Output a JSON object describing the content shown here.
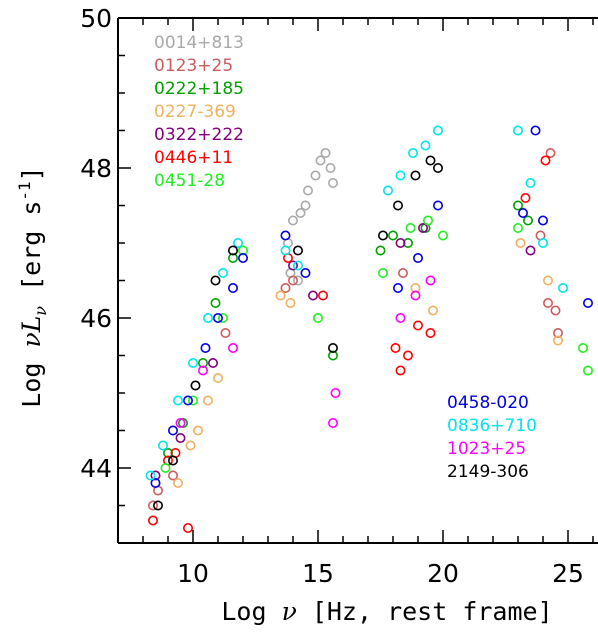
{
  "chart_data": {
    "type": "scatter",
    "title": "",
    "xlabel_prefix": "Log ",
    "xlabel_symbol": "ν",
    "xlabel_suffix": "  [Hz, rest frame]",
    "ylabel_prefix": "Log ",
    "ylabel_symbol": "νL",
    "ylabel_sub": "ν",
    "ylabel_bracket": "  [erg s",
    "ylabel_exp": "-1",
    "ylabel_end": "]",
    "xlim": [
      7.0,
      26.2
    ],
    "ylim": [
      43.0,
      50.0
    ],
    "x_ticks": [
      10,
      15,
      20,
      25
    ],
    "y_ticks": [
      44,
      46,
      48,
      50
    ],
    "grid": false,
    "legend_placement": "top-left and bottom-right",
    "series": [
      {
        "name": "0014+813",
        "color": "#a9a9a9",
        "points": [
          [
            13.8,
            47.0
          ],
          [
            14.0,
            47.3
          ],
          [
            14.3,
            47.4
          ],
          [
            14.6,
            47.7
          ],
          [
            14.9,
            47.9
          ],
          [
            15.1,
            48.1
          ],
          [
            15.3,
            48.2
          ],
          [
            15.5,
            48.0
          ],
          [
            15.6,
            47.8
          ],
          [
            14.5,
            47.5
          ],
          [
            13.9,
            46.6
          ],
          [
            14.2,
            46.5
          ]
        ]
      },
      {
        "name": "0123+25",
        "color": "#cd5c5c",
        "points": [
          [
            8.4,
            43.5
          ],
          [
            8.6,
            43.7
          ],
          [
            9.2,
            43.9
          ],
          [
            11.3,
            45.8
          ],
          [
            13.7,
            46.4
          ],
          [
            14.0,
            46.5
          ],
          [
            24.2,
            46.2
          ],
          [
            24.5,
            46.1
          ],
          [
            24.6,
            45.8
          ],
          [
            18.4,
            46.6
          ],
          [
            24.3,
            48.2
          ],
          [
            23.9,
            47.1
          ]
        ]
      },
      {
        "name": "0222+185",
        "color": "#00a000",
        "points": [
          [
            9.0,
            44.2
          ],
          [
            9.6,
            44.6
          ],
          [
            10.4,
            45.4
          ],
          [
            10.9,
            46.2
          ],
          [
            11.6,
            46.8
          ],
          [
            15.6,
            45.5
          ],
          [
            17.5,
            46.9
          ],
          [
            18.0,
            47.1
          ],
          [
            18.6,
            47.0
          ],
          [
            19.3,
            47.2
          ],
          [
            23.0,
            47.5
          ],
          [
            23.4,
            47.3
          ]
        ]
      },
      {
        "name": "0227-369",
        "color": "#f0b060",
        "points": [
          [
            9.4,
            43.8
          ],
          [
            9.9,
            44.3
          ],
          [
            10.2,
            44.5
          ],
          [
            10.6,
            44.9
          ],
          [
            11.0,
            45.2
          ],
          [
            13.5,
            46.3
          ],
          [
            13.9,
            46.2
          ],
          [
            18.9,
            46.4
          ],
          [
            19.6,
            46.1
          ],
          [
            23.1,
            47.0
          ],
          [
            24.2,
            46.5
          ],
          [
            24.6,
            45.7
          ]
        ]
      },
      {
        "name": "0322+222",
        "color": "#800080",
        "points": [
          [
            8.5,
            43.9
          ],
          [
            9.5,
            44.4
          ],
          [
            10.8,
            45.4
          ],
          [
            14.0,
            46.7
          ],
          [
            14.8,
            46.3
          ],
          [
            18.3,
            47.0
          ],
          [
            19.2,
            47.2
          ],
          [
            23.5,
            46.9
          ]
        ]
      },
      {
        "name": "0446+11",
        "color": "#ff0000",
        "points": [
          [
            8.4,
            43.3
          ],
          [
            9.0,
            44.1
          ],
          [
            9.3,
            44.2
          ],
          [
            9.8,
            43.2
          ],
          [
            13.8,
            46.8
          ],
          [
            15.2,
            46.3
          ],
          [
            18.1,
            45.6
          ],
          [
            18.3,
            45.3
          ],
          [
            18.6,
            45.5
          ],
          [
            19.0,
            45.9
          ],
          [
            19.5,
            45.8
          ],
          [
            23.3,
            47.6
          ],
          [
            24.1,
            48.1
          ]
        ]
      },
      {
        "name": "0451-28",
        "color": "#22ee22",
        "points": [
          [
            8.9,
            44.0
          ],
          [
            10.0,
            44.9
          ],
          [
            11.2,
            46.0
          ],
          [
            12.0,
            46.9
          ],
          [
            15.0,
            46.0
          ],
          [
            17.6,
            46.6
          ],
          [
            18.7,
            47.2
          ],
          [
            19.4,
            47.3
          ],
          [
            20.0,
            47.1
          ],
          [
            23.0,
            47.2
          ],
          [
            25.8,
            45.3
          ],
          [
            25.6,
            45.6
          ]
        ]
      },
      {
        "name": "0458-020",
        "color": "#0000e0",
        "points": [
          [
            8.5,
            43.8
          ],
          [
            9.2,
            44.5
          ],
          [
            9.8,
            44.9
          ],
          [
            10.5,
            45.6
          ],
          [
            11.0,
            46.0
          ],
          [
            11.6,
            46.4
          ],
          [
            12.0,
            46.8
          ],
          [
            13.7,
            47.1
          ],
          [
            14.5,
            46.6
          ],
          [
            18.2,
            46.4
          ],
          [
            19.0,
            46.8
          ],
          [
            19.8,
            47.5
          ],
          [
            23.2,
            47.4
          ],
          [
            23.7,
            48.5
          ],
          [
            24.0,
            47.3
          ],
          [
            25.8,
            46.2
          ]
        ]
      },
      {
        "name": "0836+710",
        "color": "#00e5ee",
        "points": [
          [
            8.3,
            43.9
          ],
          [
            8.8,
            44.3
          ],
          [
            9.4,
            44.9
          ],
          [
            10.0,
            45.4
          ],
          [
            10.6,
            46.0
          ],
          [
            11.2,
            46.6
          ],
          [
            11.8,
            47.0
          ],
          [
            13.7,
            46.9
          ],
          [
            14.2,
            46.7
          ],
          [
            17.8,
            47.7
          ],
          [
            18.3,
            47.9
          ],
          [
            18.8,
            48.2
          ],
          [
            19.3,
            48.3
          ],
          [
            19.8,
            48.5
          ],
          [
            23.0,
            48.5
          ],
          [
            23.5,
            47.8
          ],
          [
            24.0,
            47.0
          ],
          [
            24.8,
            46.4
          ]
        ]
      },
      {
        "name": "1023+25",
        "color": "#ff00ff",
        "points": [
          [
            9.5,
            44.6
          ],
          [
            10.4,
            45.3
          ],
          [
            11.6,
            45.6
          ],
          [
            15.6,
            44.6
          ],
          [
            15.7,
            45.0
          ],
          [
            18.3,
            46.0
          ],
          [
            18.9,
            46.3
          ],
          [
            19.5,
            46.5
          ]
        ]
      },
      {
        "name": "2149-306",
        "color": "#000000",
        "points": [
          [
            8.6,
            43.5
          ],
          [
            9.2,
            44.1
          ],
          [
            10.1,
            45.1
          ],
          [
            10.9,
            46.5
          ],
          [
            11.6,
            46.9
          ],
          [
            14.2,
            46.9
          ],
          [
            15.6,
            45.6
          ],
          [
            17.6,
            47.1
          ],
          [
            18.2,
            47.5
          ],
          [
            18.9,
            47.9
          ],
          [
            19.5,
            48.1
          ],
          [
            19.8,
            48.0
          ]
        ]
      }
    ]
  }
}
